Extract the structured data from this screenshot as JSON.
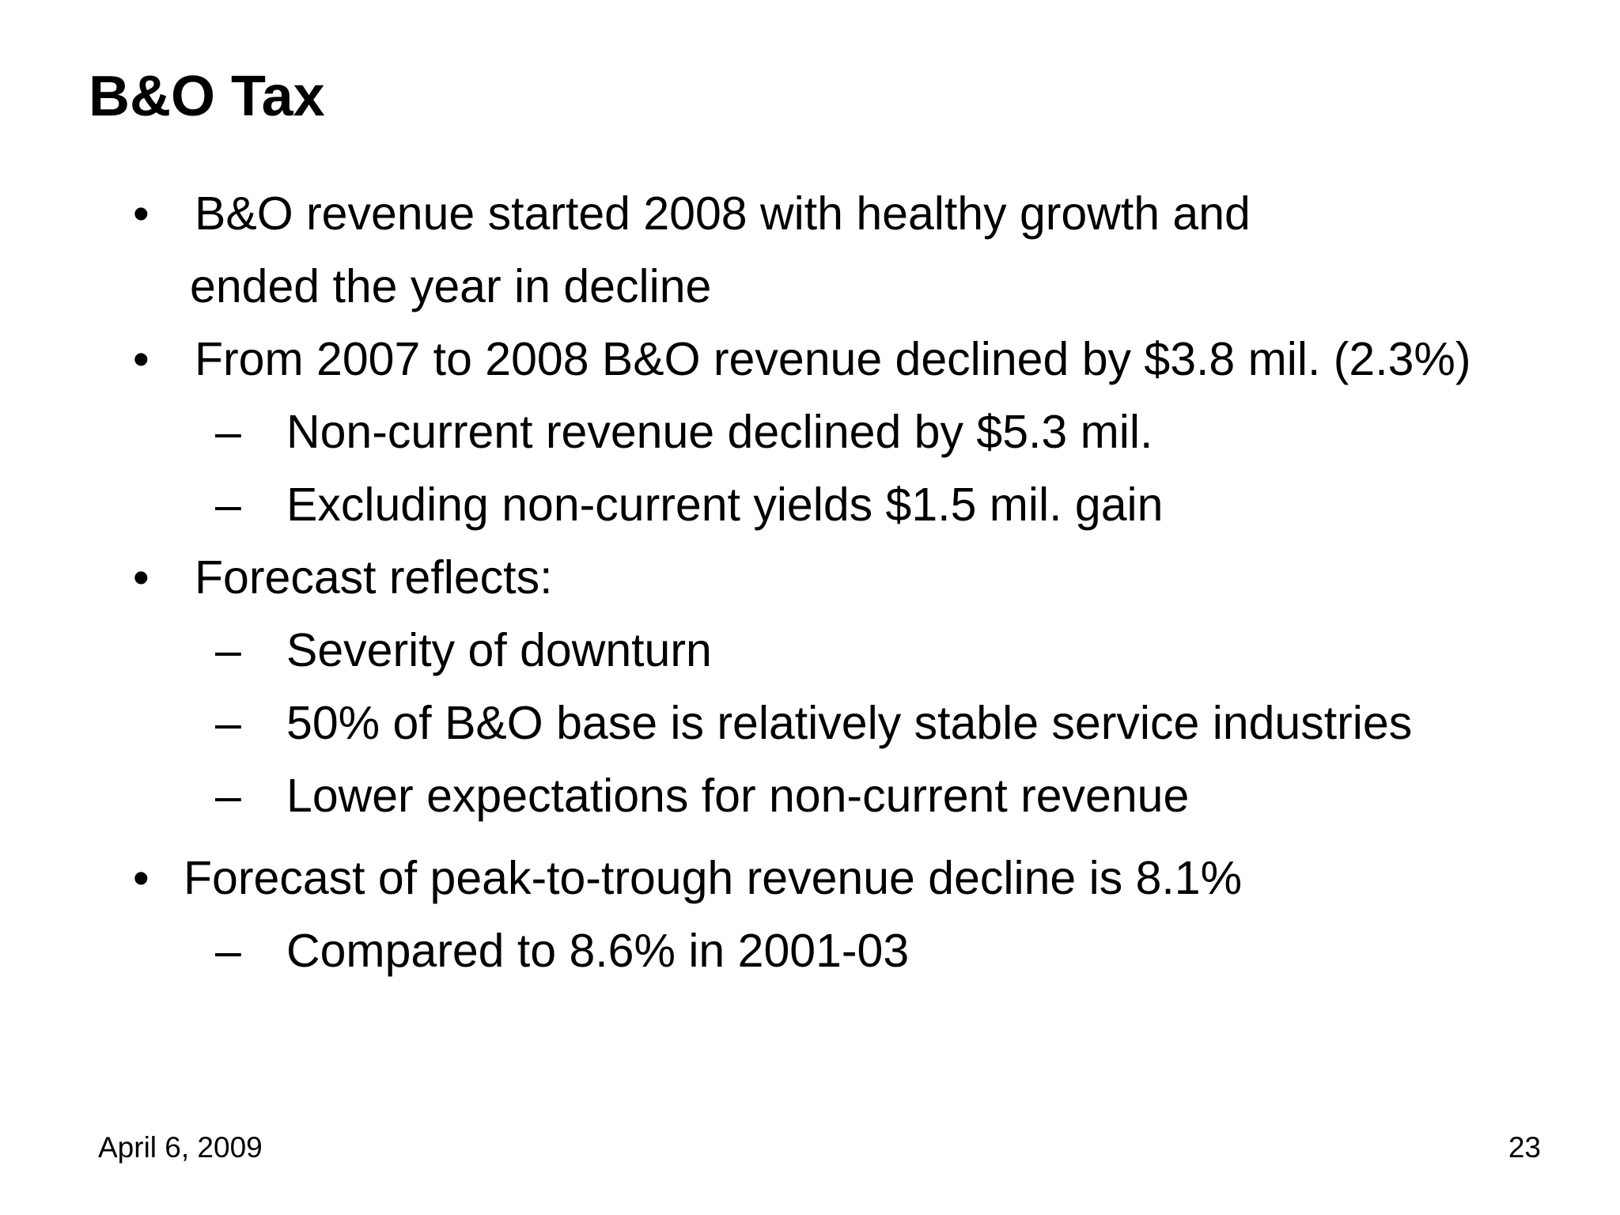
{
  "slide": {
    "title": "B&O Tax",
    "bullet_glyph": "•",
    "dash_glyph": "–",
    "bullets": [
      {
        "lines": [
          "B&O revenue started 2008 with healthy growth and",
          "ended the year in decline"
        ],
        "subitems": []
      },
      {
        "lines": [
          "From 2007 to 2008 B&O revenue declined by $3.8 mil. (2.3%)"
        ],
        "subitems": [
          "Non-current revenue declined by $5.3 mil.",
          "Excluding non-current yields $1.5 mil. gain"
        ]
      },
      {
        "lines": [
          "Forecast reflects:"
        ],
        "subitems": [
          "Severity of downturn",
          "50% of B&O base is relatively stable service industries",
          "Lower expectations for non-current revenue"
        ]
      },
      {
        "lines": [
          "Forecast of peak-to-trough revenue decline is 8.1%"
        ],
        "subitems": [
          "Compared to 8.6% in 2001-03"
        ]
      }
    ],
    "footer": {
      "date": "April 6, 2009",
      "page_number": "23"
    }
  }
}
